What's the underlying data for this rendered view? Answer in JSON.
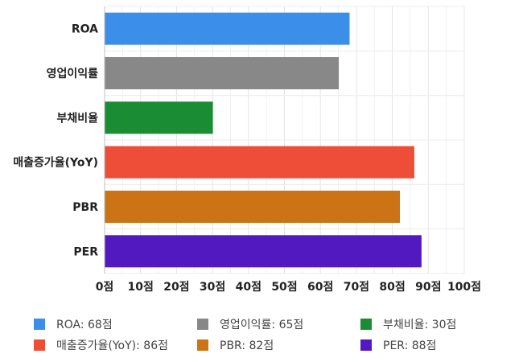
{
  "chart_data": {
    "type": "bar",
    "orientation": "horizontal",
    "categories": [
      "ROA",
      "영업이익률",
      "부채비율",
      "매출증가율(YoY)",
      "PBR",
      "PER"
    ],
    "values": [
      68,
      65,
      30,
      86,
      82,
      88
    ],
    "colors": [
      "#3b8fe8",
      "#888888",
      "#1a8c33",
      "#ee4e38",
      "#cc7316",
      "#5219c1"
    ],
    "x_ticks": [
      "0점",
      "10점",
      "20점",
      "30점",
      "40점",
      "50점",
      "60점",
      "70점",
      "80점",
      "90점",
      "100점"
    ],
    "xlim": [
      0,
      100
    ],
    "grid": true,
    "legend_position": "bottom",
    "legend": [
      {
        "label": "ROA: 68점",
        "color": "#3b8fe8"
      },
      {
        "label": "영업이익률: 65점",
        "color": "#888888"
      },
      {
        "label": "부채비율: 30점",
        "color": "#1a8c33"
      },
      {
        "label": "매출증가율(YoY): 86점",
        "color": "#ee4e38"
      },
      {
        "label": "PBR: 82점",
        "color": "#cc7316"
      },
      {
        "label": "PER: 88점",
        "color": "#5219c1"
      }
    ]
  }
}
